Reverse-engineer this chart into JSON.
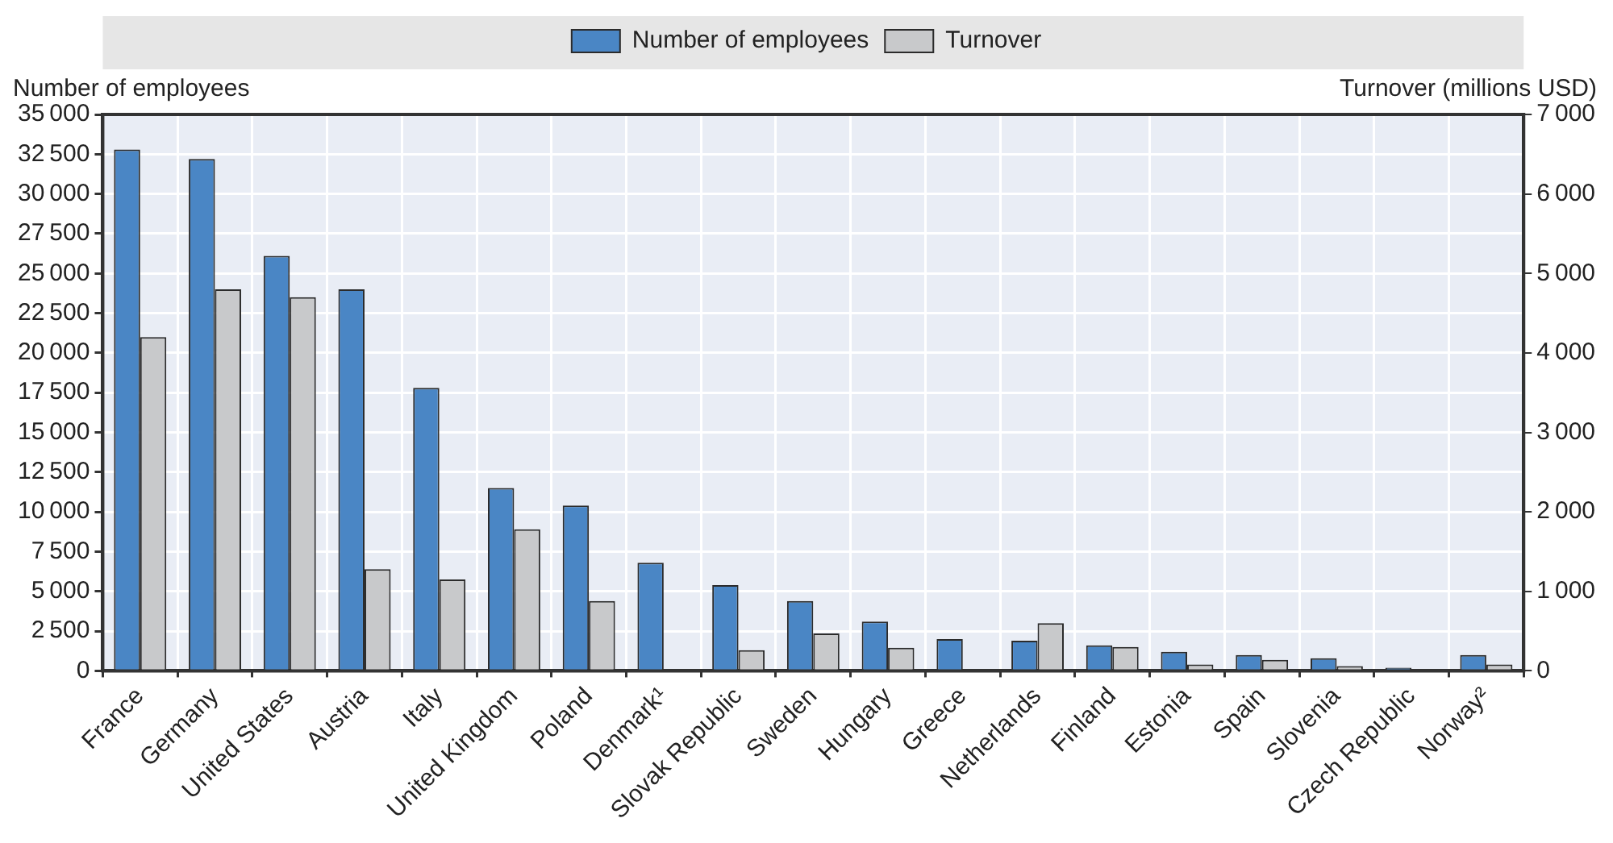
{
  "chart_data": {
    "type": "bar",
    "ylabel": "Number of employees",
    "y2label": "Turnover (millions USD)",
    "categories": [
      "France",
      "Germany",
      "United States",
      "Austria",
      "Italy",
      "United Kingdom",
      "Poland",
      "Denmark¹",
      "Slovak Republic",
      "Sweden",
      "Hungary",
      "Greece",
      "Netherlands",
      "Finland",
      "Estonia",
      "Spain",
      "Slovenia",
      "Czech Republic",
      "Norway²"
    ],
    "series": [
      {
        "name": "Number of employees",
        "color": "#4a86c5",
        "values": [
          32800,
          32200,
          26100,
          24000,
          17800,
          11500,
          10400,
          6800,
          5400,
          4400,
          3100,
          2000,
          1900,
          1600,
          1200,
          1000,
          800,
          200,
          1000
        ]
      },
      {
        "name": "Turnover",
        "color": "#c8c9cb",
        "axis": "y2",
        "values": [
          4200,
          4800,
          4700,
          1280,
          1150,
          1780,
          880,
          null,
          260,
          470,
          290,
          null,
          600,
          300,
          80,
          140,
          60,
          null,
          80
        ]
      }
    ],
    "ylim": [
      0,
      35000
    ],
    "yticks": [
      0,
      2500,
      5000,
      7500,
      10000,
      12500,
      15000,
      17500,
      20000,
      22500,
      25000,
      27500,
      30000,
      32500,
      35000
    ],
    "y2lim": [
      0,
      7000
    ],
    "y2ticks": [
      0,
      1000,
      2000,
      3000,
      4000,
      5000,
      6000,
      7000
    ],
    "grid": true,
    "legend": "top"
  }
}
